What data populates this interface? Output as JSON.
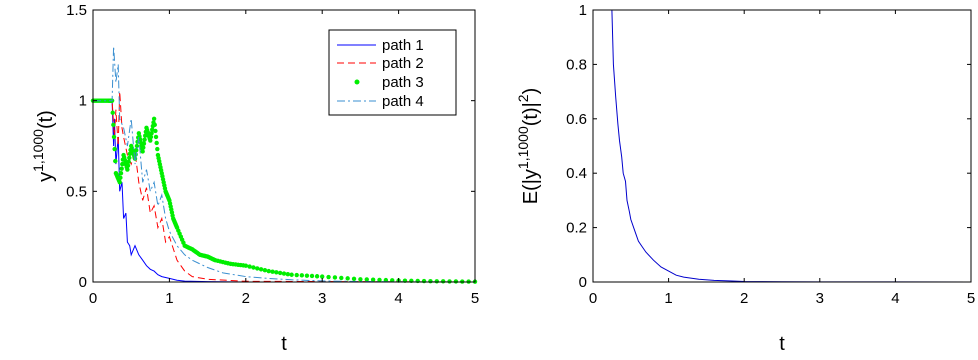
{
  "chart_data": [
    {
      "type": "line",
      "xlabel": "t",
      "ylabel_base": "y",
      "ylabel_sup": "1,1000",
      "ylabel_tail": "(t)",
      "xlim": [
        0,
        5
      ],
      "ylim": [
        0,
        1.5
      ],
      "xticks": [
        0,
        1,
        2,
        3,
        4,
        5
      ],
      "yticks": [
        0,
        0.5,
        1,
        1.5
      ],
      "xtick_labels": [
        "0",
        "1",
        "2",
        "3",
        "4",
        "5"
      ],
      "ytick_labels": [
        "0",
        "0.5",
        "1",
        "1.5"
      ],
      "grid": false,
      "legend_position": "top-right",
      "series": [
        {
          "name": "path 1",
          "color": "#0000ff",
          "style": "solid",
          "x": [
            0,
            0.25,
            0.27,
            0.28,
            0.3,
            0.33,
            0.35,
            0.38,
            0.4,
            0.43,
            0.45,
            0.48,
            0.5,
            0.55,
            0.6,
            0.65,
            0.7,
            0.75,
            0.8,
            0.85,
            0.9,
            1.0,
            1.1,
            1.2,
            1.5,
            2.0,
            5.0
          ],
          "y": [
            1.0,
            1.0,
            0.75,
            0.9,
            0.65,
            0.8,
            0.5,
            0.55,
            0.35,
            0.38,
            0.22,
            0.2,
            0.15,
            0.2,
            0.15,
            0.12,
            0.09,
            0.07,
            0.06,
            0.04,
            0.03,
            0.02,
            0.01,
            0.005,
            0.002,
            0.0,
            0.0
          ]
        },
        {
          "name": "path 2",
          "color": "#ff0000",
          "style": "dashed",
          "x": [
            0,
            0.25,
            0.28,
            0.3,
            0.33,
            0.35,
            0.38,
            0.4,
            0.45,
            0.5,
            0.55,
            0.6,
            0.65,
            0.7,
            0.75,
            0.8,
            0.85,
            0.9,
            0.95,
            1.0,
            1.1,
            1.2,
            1.3,
            1.5,
            2.0,
            5.0
          ],
          "y": [
            1.0,
            1.0,
            0.8,
            0.95,
            0.75,
            1.05,
            0.85,
            0.8,
            0.7,
            0.65,
            0.72,
            0.55,
            0.45,
            0.52,
            0.38,
            0.42,
            0.3,
            0.35,
            0.22,
            0.25,
            0.12,
            0.06,
            0.03,
            0.015,
            0.004,
            0.0
          ]
        },
        {
          "name": "path 3",
          "color": "#00ee00",
          "style": "dots",
          "x": [
            0,
            0.1,
            0.2,
            0.25,
            0.3,
            0.35,
            0.4,
            0.45,
            0.5,
            0.55,
            0.6,
            0.65,
            0.7,
            0.75,
            0.8,
            0.85,
            0.9,
            0.95,
            1.0,
            1.05,
            1.1,
            1.2,
            1.3,
            1.4,
            1.5,
            1.6,
            1.8,
            2.0,
            2.3,
            2.6,
            3.0,
            3.5,
            4.0,
            4.5,
            5.0
          ],
          "y": [
            1.0,
            1.0,
            1.0,
            1.0,
            0.6,
            0.55,
            0.7,
            0.62,
            0.75,
            0.68,
            0.82,
            0.72,
            0.85,
            0.78,
            0.9,
            0.7,
            0.6,
            0.5,
            0.45,
            0.35,
            0.3,
            0.2,
            0.18,
            0.15,
            0.14,
            0.12,
            0.1,
            0.09,
            0.06,
            0.04,
            0.03,
            0.015,
            0.008,
            0.004,
            0.002
          ]
        },
        {
          "name": "path 4",
          "color": "#3a8fd0",
          "style": "dashdot",
          "x": [
            0,
            0.25,
            0.27,
            0.3,
            0.33,
            0.35,
            0.4,
            0.45,
            0.5,
            0.55,
            0.6,
            0.65,
            0.7,
            0.75,
            0.8,
            0.85,
            0.9,
            0.95,
            1.0,
            1.1,
            1.2,
            1.3,
            1.4,
            1.5,
            1.7,
            2.0,
            2.3,
            2.6,
            3.0,
            3.5,
            4.0,
            5.0
          ],
          "y": [
            1.0,
            1.0,
            1.3,
            1.1,
            1.2,
            0.9,
            0.85,
            0.75,
            0.9,
            0.65,
            0.8,
            0.55,
            0.62,
            0.5,
            0.55,
            0.42,
            0.48,
            0.35,
            0.28,
            0.2,
            0.15,
            0.12,
            0.1,
            0.08,
            0.05,
            0.03,
            0.02,
            0.012,
            0.006,
            0.003,
            0.001,
            0.0
          ]
        }
      ]
    },
    {
      "type": "line",
      "xlabel": "t",
      "ylabel_base": "E(|y",
      "ylabel_sup": "1,1000",
      "ylabel_mid": "(t)|",
      "ylabel_sup2": "2",
      "ylabel_tail": ")",
      "xlim": [
        0,
        5
      ],
      "ylim": [
        0,
        1
      ],
      "xticks": [
        0,
        1,
        2,
        3,
        4,
        5
      ],
      "yticks": [
        0,
        0.2,
        0.4,
        0.6,
        0.8,
        1
      ],
      "xtick_labels": [
        "0",
        "1",
        "2",
        "3",
        "4",
        "5"
      ],
      "ytick_labels": [
        "0",
        "0.2",
        "0.4",
        "0.6",
        "0.8",
        "1"
      ],
      "grid": false,
      "series": [
        {
          "color": "#0000cc",
          "style": "solid",
          "x": [
            0.2,
            0.25,
            0.27,
            0.3,
            0.33,
            0.35,
            0.38,
            0.4,
            0.43,
            0.45,
            0.48,
            0.5,
            0.55,
            0.6,
            0.65,
            0.7,
            0.8,
            0.9,
            1.0,
            1.1,
            1.2,
            1.4,
            1.6,
            1.8,
            2.0,
            2.5,
            3.0,
            4.0,
            5.0
          ],
          "y": [
            1.0,
            1.0,
            0.8,
            0.68,
            0.58,
            0.52,
            0.46,
            0.4,
            0.37,
            0.3,
            0.26,
            0.23,
            0.19,
            0.15,
            0.13,
            0.11,
            0.08,
            0.055,
            0.04,
            0.025,
            0.018,
            0.01,
            0.006,
            0.004,
            0.002,
            0.001,
            0.0005,
            0.0002,
            0.0001
          ]
        }
      ]
    }
  ]
}
